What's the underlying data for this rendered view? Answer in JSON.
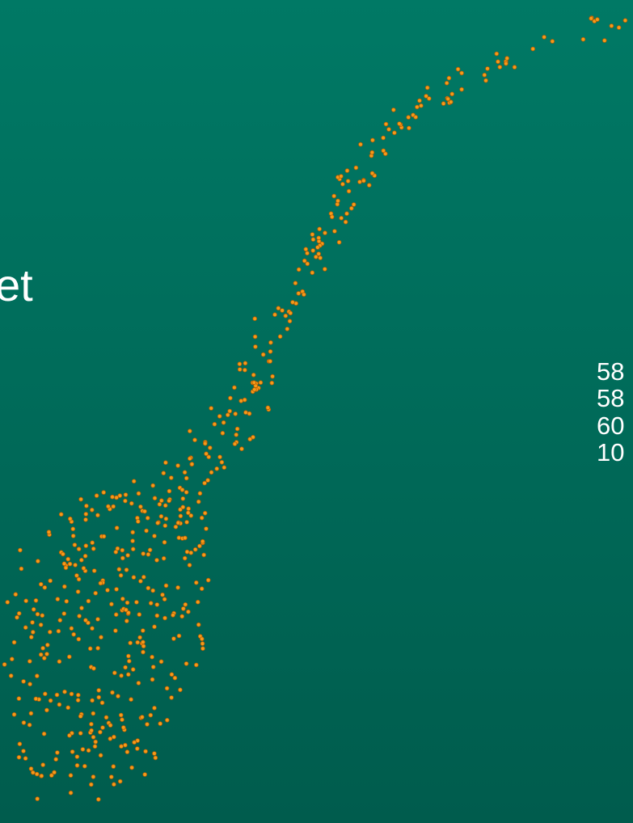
{
  "heading": "et",
  "items": [
    "58",
    "58",
    "60",
    "10"
  ]
}
